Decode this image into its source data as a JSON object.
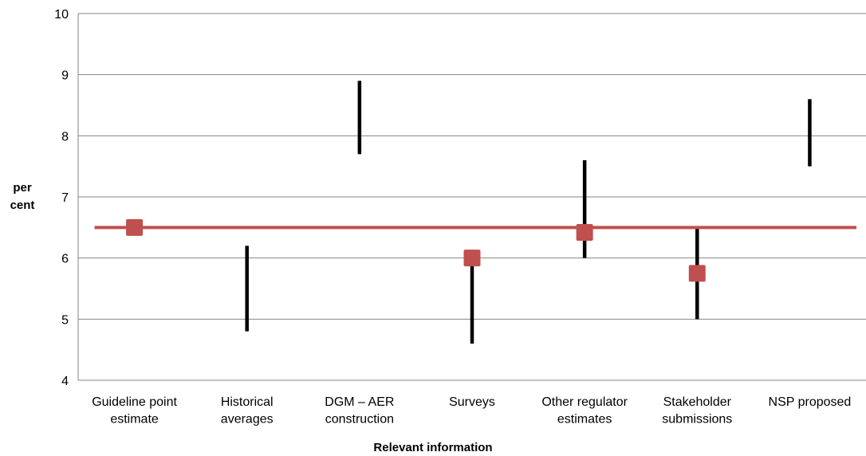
{
  "chart_data": {
    "type": "range",
    "title": "",
    "xlabel": "Relevant information",
    "ylabel": "per cent",
    "ylim": [
      4,
      10
    ],
    "yticks": [
      4,
      5,
      6,
      7,
      8,
      9,
      10
    ],
    "grid": true,
    "categories": [
      [
        "Guideline point",
        "estimate"
      ],
      [
        "Historical",
        "averages"
      ],
      [
        "DGM – AER",
        "construction"
      ],
      [
        "Surveys"
      ],
      [
        "Other regulator",
        "estimates"
      ],
      [
        "Stakeholder",
        "submissions"
      ],
      [
        "NSP proposed"
      ]
    ],
    "ranges": [
      null,
      [
        4.8,
        6.2
      ],
      [
        7.7,
        8.9
      ],
      [
        4.6,
        6.0
      ],
      [
        6.0,
        7.6
      ],
      [
        5.0,
        6.5
      ],
      [
        7.5,
        8.6
      ]
    ],
    "point_estimates": [
      6.5,
      null,
      null,
      6.0,
      6.42,
      5.75,
      null
    ],
    "reference_line": 6.5,
    "colors": {
      "range": "#000000",
      "point": "#c0504d",
      "reference_line": "#c0504d",
      "grid": "#868686"
    }
  }
}
